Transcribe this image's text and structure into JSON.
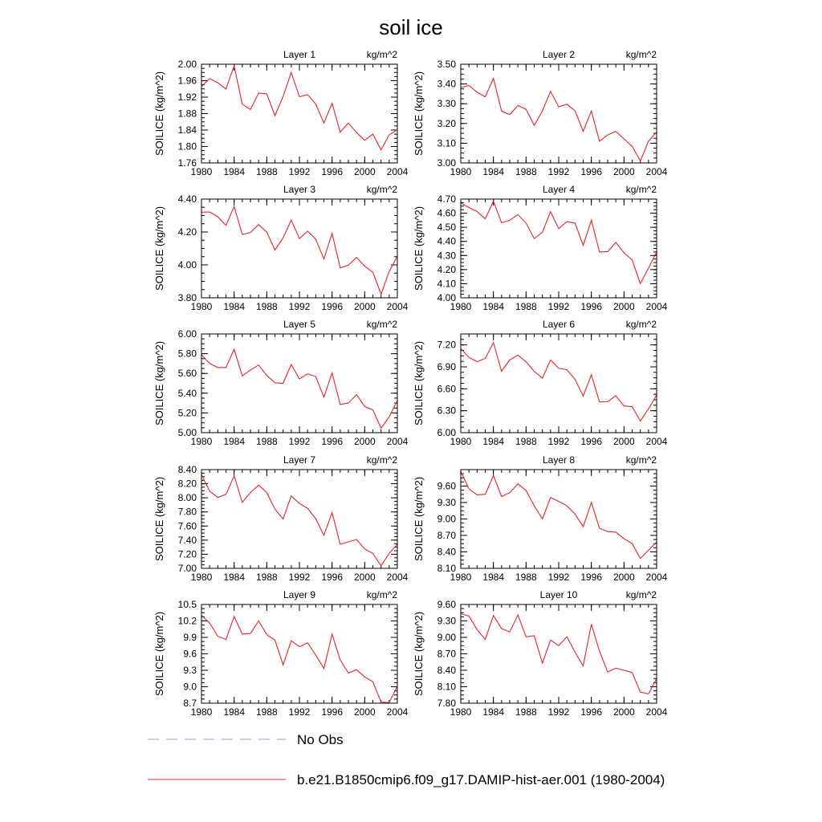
{
  "figure": {
    "title": "soil ice",
    "units": "kg/m^2",
    "ylabel": "SOILICE  (kg/m^2)",
    "legend": [
      {
        "name": "No Obs",
        "style": "dashed",
        "color": "#9a9af0"
      },
      {
        "name": "b.e21.B1850cmip6.f09_g17.DAMIP-hist-aer.001 (1980-2004)",
        "style": "solid",
        "color": "#e8202a"
      }
    ]
  },
  "chart_data": [
    {
      "type": "line",
      "title": "Layer 1",
      "units": "kg/m^2",
      "ylabel": "SOILICE  (kg/m^2)",
      "xlim": [
        1980,
        2004
      ],
      "ylim": [
        1.76,
        2.0
      ],
      "yticks": [
        "1.76",
        "1.80",
        "1.84",
        "1.88",
        "1.92",
        "1.96",
        "2.00"
      ],
      "xticks": [
        "1980",
        "1984",
        "1988",
        "1992",
        "1996",
        "2000",
        "2004"
      ],
      "series": [
        {
          "name": "b.e21.B1850cmip6.f09_g17.DAMIP-hist-aer.001 (1980-2004)",
          "color": "#e8202a",
          "x": [
            1980,
            1981,
            1982,
            1983,
            1984,
            1985,
            1986,
            1987,
            1988,
            1989,
            1990,
            1991,
            1992,
            1993,
            1994,
            1995,
            1996,
            1997,
            1998,
            1999,
            2000,
            2001,
            2002,
            2003,
            2004
          ],
          "y": [
            1.946,
            1.965,
            1.955,
            1.94,
            1.996,
            1.903,
            1.89,
            1.93,
            1.928,
            1.875,
            1.922,
            1.98,
            1.921,
            1.926,
            1.903,
            1.857,
            1.905,
            1.835,
            1.857,
            1.834,
            1.815,
            1.83,
            1.792,
            1.828,
            1.841
          ]
        }
      ]
    },
    {
      "type": "line",
      "title": "Layer 2",
      "units": "kg/m^2",
      "ylabel": "SOILICE  (kg/m^2)",
      "xlim": [
        1980,
        2004
      ],
      "ylim": [
        3.0,
        3.5
      ],
      "yticks": [
        "3.00",
        "3.10",
        "3.20",
        "3.30",
        "3.40",
        "3.50"
      ],
      "xticks": [
        "1980",
        "1984",
        "1988",
        "1992",
        "1996",
        "2000",
        "2004"
      ],
      "series": [
        {
          "name": "b.e21.B1850cmip6.f09_g17.DAMIP-hist-aer.001 (1980-2004)",
          "color": "#e8202a",
          "x": [
            1980,
            1981,
            1982,
            1983,
            1984,
            1985,
            1986,
            1987,
            1988,
            1989,
            1990,
            1991,
            1992,
            1993,
            1994,
            1995,
            1996,
            1997,
            1998,
            1999,
            2000,
            2001,
            2002,
            2003,
            2004
          ],
          "y": [
            3.382,
            3.392,
            3.358,
            3.335,
            3.428,
            3.263,
            3.245,
            3.291,
            3.272,
            3.19,
            3.264,
            3.362,
            3.284,
            3.297,
            3.265,
            3.16,
            3.263,
            3.11,
            3.142,
            3.16,
            3.122,
            3.084,
            3.01,
            3.11,
            3.157
          ]
        }
      ]
    },
    {
      "type": "line",
      "title": "Layer 3",
      "units": "kg/m^2",
      "ylabel": "SOILICE  (kg/m^2)",
      "xlim": [
        1980,
        2004
      ],
      "ylim": [
        3.8,
        4.4
      ],
      "yticks": [
        "3.80",
        "4.00",
        "4.20",
        "4.40"
      ],
      "xticks": [
        "1980",
        "1984",
        "1988",
        "1992",
        "1996",
        "2000",
        "2004"
      ],
      "series": [
        {
          "name": "b.e21.B1850cmip6.f09_g17.DAMIP-hist-aer.001 (1980-2004)",
          "color": "#e8202a",
          "x": [
            1980,
            1981,
            1982,
            1983,
            1984,
            1985,
            1986,
            1987,
            1988,
            1989,
            1990,
            1991,
            1992,
            1993,
            1994,
            1995,
            1996,
            1997,
            1998,
            1999,
            2000,
            2001,
            2002,
            2003,
            2004
          ],
          "y": [
            4.32,
            4.322,
            4.292,
            4.24,
            4.355,
            4.185,
            4.197,
            4.245,
            4.2,
            4.09,
            4.165,
            4.272,
            4.16,
            4.205,
            4.157,
            4.035,
            4.192,
            3.982,
            3.998,
            4.045,
            3.992,
            3.955,
            3.822,
            3.96,
            4.052
          ]
        }
      ]
    },
    {
      "type": "line",
      "title": "Layer 4",
      "units": "kg/m^2",
      "ylabel": "SOILICE  (kg/m^2)",
      "xlim": [
        1980,
        2004
      ],
      "ylim": [
        4.0,
        4.7
      ],
      "yticks": [
        "4.00",
        "4.10",
        "4.20",
        "4.30",
        "4.40",
        "4.50",
        "4.60",
        "4.70"
      ],
      "xticks": [
        "1980",
        "1984",
        "1988",
        "1992",
        "1996",
        "2000",
        "2004"
      ],
      "series": [
        {
          "name": "b.e21.B1850cmip6.f09_g17.DAMIP-hist-aer.001 (1980-2004)",
          "color": "#e8202a",
          "x": [
            1980,
            1981,
            1982,
            1983,
            1984,
            1985,
            1986,
            1987,
            1988,
            1989,
            1990,
            1991,
            1992,
            1993,
            1994,
            1995,
            1996,
            1997,
            1998,
            1999,
            2000,
            2001,
            2002,
            2003,
            2004
          ],
          "y": [
            4.672,
            4.64,
            4.612,
            4.56,
            4.685,
            4.532,
            4.55,
            4.59,
            4.53,
            4.42,
            4.465,
            4.61,
            4.49,
            4.54,
            4.53,
            4.372,
            4.55,
            4.325,
            4.328,
            4.392,
            4.32,
            4.268,
            4.1,
            4.21,
            4.325
          ]
        }
      ]
    },
    {
      "type": "line",
      "title": "Layer 5",
      "units": "kg/m^2",
      "ylabel": "SOILICE  (kg/m^2)",
      "xlim": [
        1980,
        2004
      ],
      "ylim": [
        5.0,
        6.0
      ],
      "yticks": [
        "5.00",
        "5.20",
        "5.40",
        "5.60",
        "5.80",
        "6.00"
      ],
      "xticks": [
        "1980",
        "1984",
        "1988",
        "1992",
        "1996",
        "2000",
        "2004"
      ],
      "series": [
        {
          "name": "b.e21.B1850cmip6.f09_g17.DAMIP-hist-aer.001 (1980-2004)",
          "color": "#e8202a",
          "x": [
            1980,
            1981,
            1982,
            1983,
            1984,
            1985,
            1986,
            1987,
            1988,
            1989,
            1990,
            1991,
            1992,
            1993,
            1994,
            1995,
            1996,
            1997,
            1998,
            1999,
            2000,
            2001,
            2002,
            2003,
            2004
          ],
          "y": [
            5.79,
            5.7,
            5.66,
            5.66,
            5.845,
            5.575,
            5.635,
            5.685,
            5.58,
            5.505,
            5.5,
            5.69,
            5.545,
            5.595,
            5.57,
            5.36,
            5.605,
            5.285,
            5.3,
            5.385,
            5.265,
            5.23,
            5.045,
            5.16,
            5.325
          ]
        }
      ]
    },
    {
      "type": "line",
      "title": "Layer 6",
      "units": "kg/m^2",
      "ylabel": "SOILICE  (kg/m^2)",
      "xlim": [
        1980,
        2004
      ],
      "ylim": [
        6.0,
        7.35
      ],
      "yticks": [
        "6.00",
        "6.30",
        "6.60",
        "6.90",
        "7.20"
      ],
      "xticks": [
        "1980",
        "1984",
        "1988",
        "1992",
        "1996",
        "2000",
        "2004"
      ],
      "series": [
        {
          "name": "b.e21.B1850cmip6.f09_g17.DAMIP-hist-aer.001 (1980-2004)",
          "color": "#e8202a",
          "x": [
            1980,
            1981,
            1982,
            1983,
            1984,
            1985,
            1986,
            1987,
            1988,
            1989,
            1990,
            1991,
            1992,
            1993,
            1994,
            1995,
            1996,
            1997,
            1998,
            1999,
            2000,
            2001,
            2002,
            2003,
            2004
          ],
          "y": [
            7.15,
            7.03,
            6.97,
            7.015,
            7.23,
            6.84,
            6.995,
            7.06,
            6.97,
            6.84,
            6.745,
            6.995,
            6.88,
            6.86,
            6.73,
            6.5,
            6.79,
            6.42,
            6.425,
            6.505,
            6.365,
            6.355,
            6.16,
            6.325,
            6.515
          ]
        }
      ]
    },
    {
      "type": "line",
      "title": "Layer 7",
      "units": "kg/m^2",
      "ylabel": "SOILICE  (kg/m^2)",
      "xlim": [
        1980,
        2004
      ],
      "ylim": [
        7.0,
        8.4
      ],
      "yticks": [
        "7.00",
        "7.20",
        "7.40",
        "7.60",
        "7.80",
        "8.00",
        "8.20",
        "8.40"
      ],
      "xticks": [
        "1980",
        "1984",
        "1988",
        "1992",
        "1996",
        "2000",
        "2004"
      ],
      "series": [
        {
          "name": "b.e21.B1850cmip6.f09_g17.DAMIP-hist-aer.001 (1980-2004)",
          "color": "#e8202a",
          "x": [
            1980,
            1981,
            1982,
            1983,
            1984,
            1985,
            1986,
            1987,
            1988,
            1989,
            1990,
            1991,
            1992,
            1993,
            1994,
            1995,
            1996,
            1997,
            1998,
            1999,
            2000,
            2001,
            2002,
            2003,
            2004
          ],
          "y": [
            8.33,
            8.095,
            8.005,
            8.05,
            8.31,
            7.935,
            8.075,
            8.18,
            8.075,
            7.84,
            7.7,
            8.025,
            7.92,
            7.85,
            7.705,
            7.47,
            7.79,
            7.34,
            7.375,
            7.41,
            7.275,
            7.21,
            7.035,
            7.21,
            7.345
          ]
        }
      ]
    },
    {
      "type": "line",
      "title": "Layer 8",
      "units": "kg/m^2",
      "ylabel": "SOILICE  (kg/m^2)",
      "xlim": [
        1980,
        2004
      ],
      "ylim": [
        8.1,
        9.9
      ],
      "yticks": [
        "8.10",
        "8.40",
        "8.70",
        "9.00",
        "9.30",
        "9.60"
      ],
      "xticks": [
        "1980",
        "1984",
        "1988",
        "1992",
        "1996",
        "2000",
        "2004"
      ],
      "series": [
        {
          "name": "b.e21.B1850cmip6.f09_g17.DAMIP-hist-aer.001 (1980-2004)",
          "color": "#e8202a",
          "x": [
            1980,
            1981,
            1982,
            1983,
            1984,
            1985,
            1986,
            1987,
            1988,
            1989,
            1990,
            1991,
            1992,
            1993,
            1994,
            1995,
            1996,
            1997,
            1998,
            1999,
            2000,
            2001,
            2002,
            2003,
            2004
          ],
          "y": [
            9.87,
            9.55,
            9.44,
            9.45,
            9.79,
            9.41,
            9.48,
            9.64,
            9.52,
            9.24,
            9.0,
            9.39,
            9.32,
            9.24,
            9.09,
            8.86,
            9.3,
            8.83,
            8.77,
            8.76,
            8.64,
            8.55,
            8.28,
            8.43,
            8.58
          ]
        }
      ]
    },
    {
      "type": "line",
      "title": "Layer 9",
      "units": "kg/m^2",
      "ylabel": "SOILICE  (kg/m^2)",
      "xlim": [
        1980,
        2004
      ],
      "ylim": [
        8.7,
        10.5
      ],
      "yticks": [
        "8.7",
        "9.0",
        "9.3",
        "9.6",
        "9.9",
        "10.2",
        "10.5"
      ],
      "xticks": [
        "1980",
        "1984",
        "1988",
        "1992",
        "1996",
        "2000",
        "2004"
      ],
      "series": [
        {
          "name": "b.e21.B1850cmip6.f09_g17.DAMIP-hist-aer.001 (1980-2004)",
          "color": "#e8202a",
          "x": [
            1980,
            1981,
            1982,
            1983,
            1984,
            1985,
            1986,
            1987,
            1988,
            1989,
            1990,
            1991,
            1992,
            1993,
            1994,
            1995,
            1996,
            1997,
            1998,
            1999,
            2000,
            2001,
            2002,
            2003,
            2004
          ],
          "y": [
            10.3,
            10.16,
            9.92,
            9.86,
            10.28,
            9.96,
            9.97,
            10.2,
            9.95,
            9.85,
            9.4,
            9.84,
            9.73,
            9.8,
            9.58,
            9.33,
            9.96,
            9.49,
            9.25,
            9.31,
            9.18,
            9.09,
            8.72,
            8.71,
            9.01
          ]
        }
      ]
    },
    {
      "type": "line",
      "title": "Layer 10",
      "units": "kg/m^2",
      "ylabel": "SOILICE  (kg/m^2)",
      "xlim": [
        1980,
        2004
      ],
      "ylim": [
        7.8,
        9.6
      ],
      "yticks": [
        "7.80",
        "8.10",
        "8.40",
        "8.70",
        "9.00",
        "9.30",
        "9.60"
      ],
      "xticks": [
        "1980",
        "1984",
        "1988",
        "1992",
        "1996",
        "2000",
        "2004"
      ],
      "series": [
        {
          "name": "b.e21.B1850cmip6.f09_g17.DAMIP-hist-aer.001 (1980-2004)",
          "color": "#e8202a",
          "x": [
            1980,
            1981,
            1982,
            1983,
            1984,
            1985,
            1986,
            1987,
            1988,
            1989,
            1990,
            1991,
            1992,
            1993,
            1994,
            1995,
            1996,
            1997,
            1998,
            1999,
            2000,
            2001,
            2002,
            2003,
            2004
          ],
          "y": [
            9.43,
            9.39,
            9.14,
            8.96,
            9.4,
            9.16,
            9.1,
            9.41,
            9.01,
            9.03,
            8.53,
            8.95,
            8.85,
            9.01,
            8.73,
            8.48,
            9.24,
            8.75,
            8.37,
            8.44,
            8.4,
            8.36,
            8.0,
            7.97,
            8.25
          ]
        }
      ]
    }
  ]
}
